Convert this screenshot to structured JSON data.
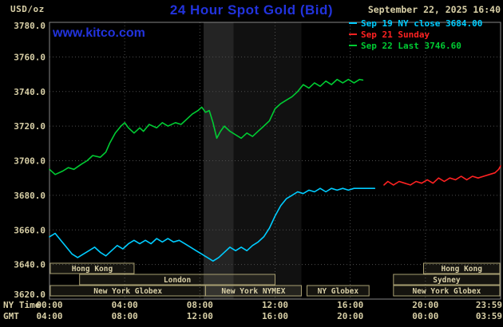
{
  "header": {
    "unit": "USD/oz",
    "title": "24 Hour Spot Gold (Bid)",
    "datetime": "September 22, 2025 16:40",
    "website": "www.kitco.com"
  },
  "colors": {
    "title_blue": "#2233dd",
    "label_tan": "#d8cfa6",
    "grid": "#4d4d4d",
    "border": "#868686",
    "session_border": "#a89f72",
    "cyan": "#00ccff",
    "red": "#ff2222",
    "green": "#00cc33"
  },
  "legend": [
    {
      "label": "Sep 19 NY close 3684.00",
      "color": "#00ccff"
    },
    {
      "label": "Sep 21 Sunday",
      "color": "#ff2222"
    },
    {
      "label": "Sep 22 Last 3746.60",
      "color": "#00cc33"
    }
  ],
  "chart_data": {
    "type": "line",
    "title": "24 Hour Spot Gold (Bid)",
    "ylabel": "USD/oz",
    "ylim": [
      3620,
      3780
    ],
    "y_tick_step": 20,
    "x_range_hours": [
      0,
      24
    ],
    "x_tick_hours": [
      0,
      4,
      8,
      12,
      16,
      20,
      24
    ],
    "grid": true,
    "legend_position": "top-right",
    "axes": {
      "ny_time_label": "NY Time",
      "gmt_label": "GMT",
      "ny_ticks": [
        "00:00",
        "04:00",
        "08:00",
        "12:00",
        "16:00",
        "20:00",
        "23:59"
      ],
      "gmt_ticks": [
        "04:00",
        "08:00",
        "12:00",
        "16:00",
        "20:00",
        "00:00",
        "03:59"
      ],
      "y_ticks": [
        "3780.0",
        "3760.0",
        "3740.0",
        "3720.0",
        "3700.0",
        "3680.0",
        "3660.0",
        "3640.0",
        "3620.0"
      ]
    },
    "series": [
      {
        "id": "sep19",
        "name": "Sep 19 NY close 3684.00",
        "color": "#00ccff",
        "close": 3684.0,
        "x": [
          0,
          0.3,
          0.6,
          0.9,
          1.2,
          1.5,
          1.8,
          2.1,
          2.4,
          2.7,
          3.0,
          3.3,
          3.6,
          3.9,
          4.2,
          4.5,
          4.8,
          5.1,
          5.4,
          5.7,
          6.0,
          6.3,
          6.6,
          6.9,
          7.2,
          7.5,
          7.8,
          8.1,
          8.4,
          8.7,
          9.0,
          9.3,
          9.6,
          9.9,
          10.2,
          10.5,
          10.8,
          11.1,
          11.4,
          11.7,
          12.0,
          12.3,
          12.6,
          12.9,
          13.2,
          13.5,
          13.8,
          14.1,
          14.4,
          14.7,
          15.0,
          15.3,
          15.6,
          15.9,
          16.2,
          16.5,
          16.8,
          17.1,
          17.3
        ],
        "y": [
          3656,
          3658,
          3654,
          3650,
          3646,
          3644,
          3646,
          3648,
          3650,
          3647,
          3645,
          3648,
          3651,
          3649,
          3652,
          3654,
          3652,
          3654,
          3652,
          3655,
          3653,
          3655,
          3653,
          3654,
          3652,
          3650,
          3648,
          3646,
          3644,
          3642,
          3644,
          3647,
          3650,
          3648,
          3650,
          3648,
          3651,
          3653,
          3656,
          3661,
          3668,
          3674,
          3678,
          3680,
          3682,
          3681,
          3683,
          3682,
          3684,
          3682,
          3684,
          3683,
          3684,
          3683,
          3684,
          3684,
          3684,
          3684,
          3684
        ]
      },
      {
        "id": "sep21",
        "name": "Sep 21 Sunday",
        "color": "#ff2222",
        "x": [
          17.8,
          18.0,
          18.3,
          18.6,
          18.9,
          19.2,
          19.5,
          19.8,
          20.1,
          20.4,
          20.7,
          21.0,
          21.3,
          21.6,
          21.9,
          22.2,
          22.5,
          22.8,
          23.1,
          23.4,
          23.7,
          23.9,
          24.0
        ],
        "y": [
          3686,
          3688,
          3686,
          3688,
          3687,
          3686,
          3688,
          3687,
          3689,
          3687,
          3690,
          3688,
          3690,
          3689,
          3691,
          3689,
          3691,
          3690,
          3691,
          3692,
          3693,
          3695,
          3697
        ]
      },
      {
        "id": "sep22",
        "name": "Sep 22 Last 3746.60",
        "color": "#00cc33",
        "last": 3746.6,
        "x": [
          0,
          0.3,
          0.7,
          1.0,
          1.3,
          1.7,
          2.0,
          2.3,
          2.7,
          3.0,
          3.2,
          3.5,
          3.8,
          4.0,
          4.2,
          4.5,
          4.8,
          5.0,
          5.3,
          5.7,
          6.0,
          6.3,
          6.7,
          7.0,
          7.3,
          7.6,
          7.9,
          8.1,
          8.3,
          8.5,
          8.7,
          8.9,
          9.1,
          9.3,
          9.6,
          9.9,
          10.2,
          10.5,
          10.8,
          11.1,
          11.4,
          11.7,
          12.0,
          12.3,
          12.6,
          12.9,
          13.2,
          13.5,
          13.8,
          14.1,
          14.4,
          14.7,
          15.0,
          15.3,
          15.6,
          15.9,
          16.2,
          16.5,
          16.67
        ],
        "y": [
          3695,
          3692,
          3694,
          3696,
          3695,
          3698,
          3700,
          3703,
          3702,
          3705,
          3710,
          3716,
          3720,
          3722,
          3719,
          3716,
          3719,
          3717,
          3721,
          3719,
          3722,
          3720,
          3722,
          3721,
          3724,
          3727,
          3729,
          3731,
          3728,
          3729,
          3722,
          3713,
          3717,
          3720,
          3717,
          3715,
          3713,
          3716,
          3714,
          3717,
          3720,
          3723,
          3730,
          3733,
          3735,
          3737,
          3740,
          3744,
          3742,
          3745,
          3743,
          3746,
          3744,
          3747,
          3745,
          3747,
          3745,
          3747,
          3746.6
        ]
      }
    ],
    "sessions": [
      {
        "row": 0,
        "start": 0,
        "end": 4.5,
        "label": "Hong Kong"
      },
      {
        "row": 0,
        "start": 19.9,
        "end": 24,
        "label": "Hong Kong"
      },
      {
        "row": 1,
        "start": 1.6,
        "end": 12.0,
        "label": "London"
      },
      {
        "row": 1,
        "start": 18.3,
        "end": 24,
        "label": "Sydney"
      },
      {
        "row": 2,
        "start": 0,
        "end": 8.3,
        "label": "New York Globex"
      },
      {
        "row": 2,
        "start": 8.3,
        "end": 13.4,
        "label": "New York NYMEX"
      },
      {
        "row": 2,
        "start": 13.7,
        "end": 17.0,
        "label": "NY Globex"
      },
      {
        "row": 2,
        "start": 18.3,
        "end": 24,
        "label": "New York Globex"
      }
    ],
    "bands": [
      {
        "start": 8.2,
        "end": 9.8,
        "color": "#242424"
      },
      {
        "start": 9.8,
        "end": 13.4,
        "color": "#111111"
      }
    ]
  }
}
